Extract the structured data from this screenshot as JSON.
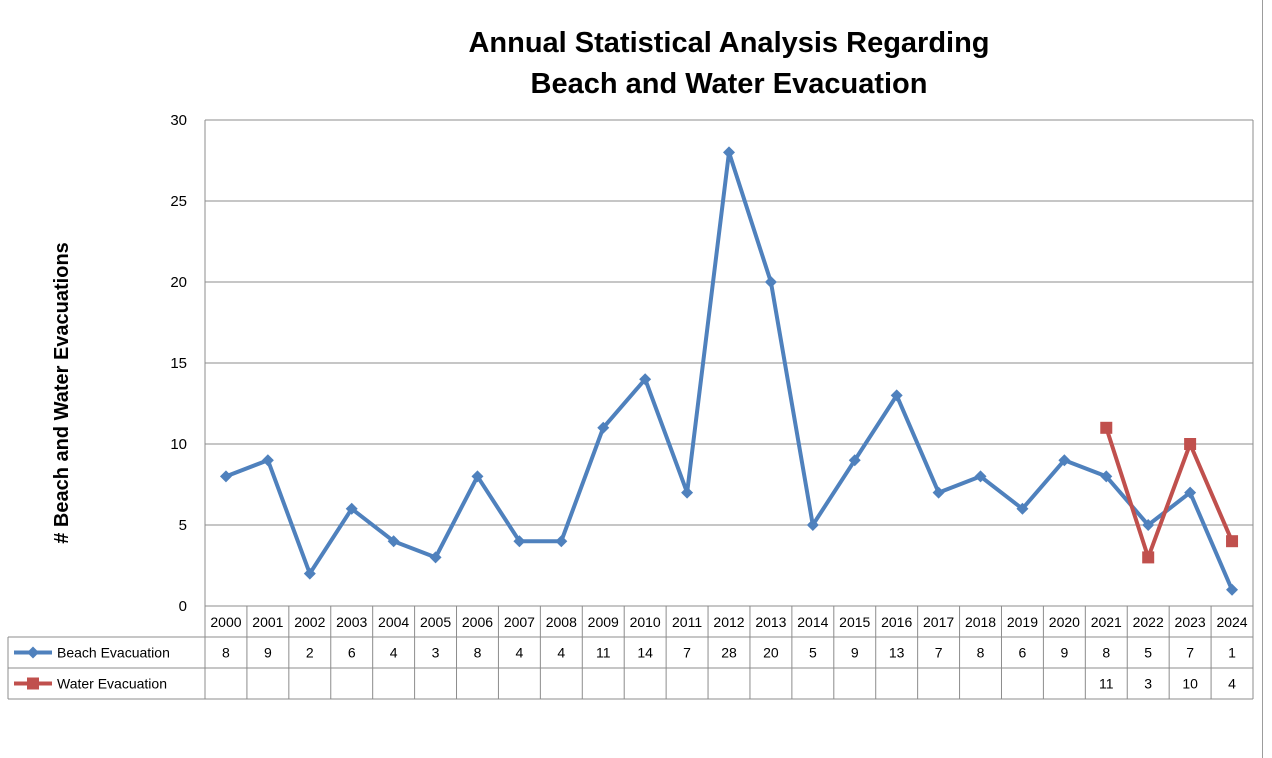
{
  "chart_data": {
    "type": "line",
    "title": [
      "Annual Statistical Analysis Regarding",
      "Beach and Water Evacuation"
    ],
    "ylabel": "# Beach and Water Evacuations",
    "xlabel": "",
    "ylim": [
      0,
      30
    ],
    "yticks": [
      0,
      5,
      10,
      15,
      20,
      25,
      30
    ],
    "grid": true,
    "legend_placement": "data-table-left",
    "categories": [
      "2000",
      "2001",
      "2002",
      "2003",
      "2004",
      "2005",
      "2006",
      "2007",
      "2008",
      "2009",
      "2010",
      "2011",
      "2012",
      "2013",
      "2014",
      "2015",
      "2016",
      "2017",
      "2018",
      "2019",
      "2020",
      "2021",
      "2022",
      "2023",
      "2024"
    ],
    "series": [
      {
        "name": "Beach Evacuation",
        "color": "#4f81bd",
        "marker": "diamond",
        "values": [
          8,
          9,
          2,
          6,
          4,
          3,
          8,
          4,
          4,
          11,
          14,
          7,
          28,
          20,
          5,
          9,
          13,
          7,
          8,
          6,
          9,
          8,
          5,
          7,
          1
        ]
      },
      {
        "name": "Water Evacuation",
        "color": "#c0504d",
        "marker": "square",
        "values": [
          null,
          null,
          null,
          null,
          null,
          null,
          null,
          null,
          null,
          null,
          null,
          null,
          null,
          null,
          null,
          null,
          null,
          null,
          null,
          null,
          null,
          11,
          3,
          10,
          4
        ]
      }
    ]
  }
}
